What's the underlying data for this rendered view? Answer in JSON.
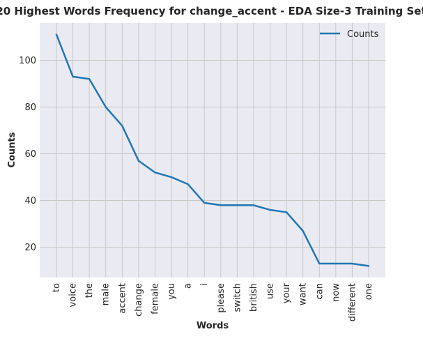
{
  "chart_data": {
    "type": "line",
    "title": "20 Highest Words Frequency for change_accent - EDA Size-3 Training Set",
    "xlabel": "Words",
    "ylabel": "Counts",
    "categories": [
      "to",
      "voice",
      "the",
      "male",
      "accent",
      "change",
      "female",
      "you",
      "a",
      "i",
      "please",
      "switch",
      "british",
      "use",
      "your",
      "want",
      "can",
      "now",
      "different",
      "one"
    ],
    "series": [
      {
        "name": "Counts",
        "values": [
          111,
          93,
          92,
          80,
          72,
          57,
          52,
          50,
          47,
          39,
          38,
          38,
          38,
          36,
          35,
          27,
          13,
          13,
          13,
          12
        ]
      }
    ],
    "ylim": [
      7.05,
      115.95
    ],
    "yticks": [
      20,
      40,
      60,
      80,
      100
    ],
    "grid": true,
    "legend_position": "top-right",
    "colors": {
      "line": "#1f77b4",
      "plot_bg": "#eaeaf2",
      "grid": "#c8c8c8"
    }
  }
}
